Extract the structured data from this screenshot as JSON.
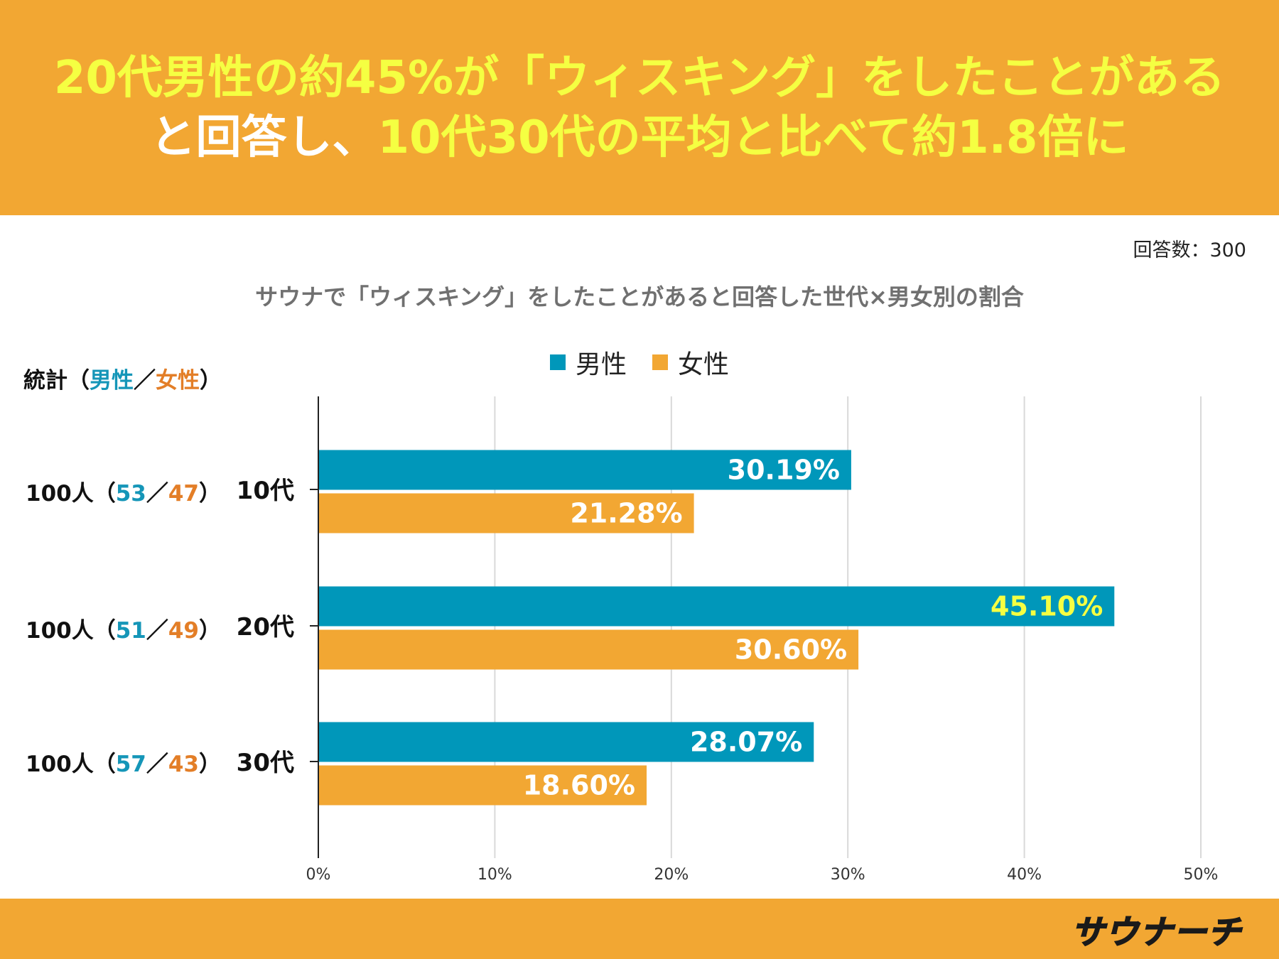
{
  "header": {
    "line1_a": "20代男性の約45%が「ウィスキング」をしたことがある",
    "line2_a": "と回答し、",
    "line2_b": "10代30代の平均と比べて約1.8倍に"
  },
  "respondents": "回答数：300",
  "stats": {
    "label": "統計（",
    "male": "男性",
    "sep": "／",
    "female": "女性",
    "close": "）",
    "rows": [
      {
        "prefix": "100人（",
        "male": "53",
        "sep": "／",
        "female": "47",
        "suffix": "）"
      },
      {
        "prefix": "100人（",
        "male": "51",
        "sep": "／",
        "female": "49",
        "suffix": "）"
      },
      {
        "prefix": "100人（",
        "male": "57",
        "sep": "／",
        "female": "43",
        "suffix": "）"
      }
    ]
  },
  "legend": {
    "male": "男性",
    "female": "女性"
  },
  "logo": {
    "text": "サウナーチ"
  },
  "colors": {
    "male": "#0097ba",
    "female": "#f2a733",
    "header_bg": "#f2a733",
    "highlight": "#f5ff42",
    "grid": "#d9d9d9"
  },
  "chart_data": {
    "type": "bar",
    "orientation": "horizontal",
    "title": "サウナで「ウィスキング」をしたことがあると回答した世代×男女別の割合",
    "categories": [
      "10代",
      "20代",
      "30代"
    ],
    "series": [
      {
        "name": "男性",
        "values": [
          30.19,
          45.1,
          28.07
        ],
        "labels": [
          "30.19%",
          "45.10%",
          "28.07%"
        ]
      },
      {
        "name": "女性",
        "values": [
          21.28,
          30.6,
          18.6
        ],
        "labels": [
          "21.28%",
          "30.60%",
          "18.60%"
        ]
      }
    ],
    "xlim": [
      0,
      50
    ],
    "xticks": [
      "0%",
      "10%",
      "20%",
      "30%",
      "40%",
      "50%"
    ],
    "highlight_label": "45.10%",
    "legend_position": "top",
    "grid": true
  }
}
